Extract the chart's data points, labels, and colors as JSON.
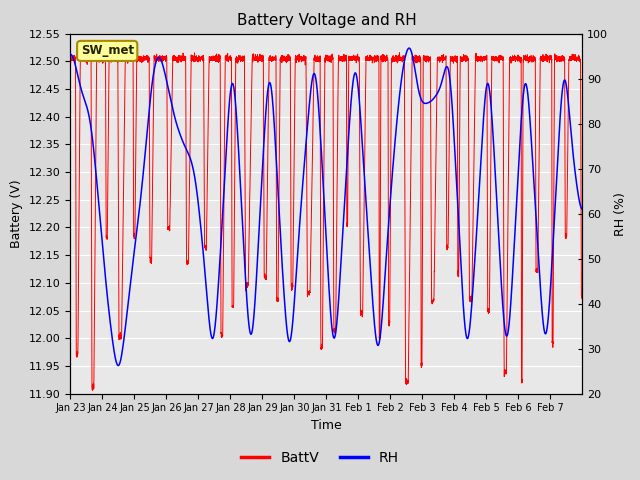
{
  "title": "Battery Voltage and RH",
  "xlabel": "Time",
  "ylabel_left": "Battery (V)",
  "ylabel_right": "RH (%)",
  "station_label": "SW_met",
  "legend_entries": [
    "BattV",
    "RH"
  ],
  "batt_ylim": [
    11.9,
    12.55
  ],
  "rh_ylim": [
    20,
    100
  ],
  "batt_yticks": [
    11.9,
    11.95,
    12.0,
    12.05,
    12.1,
    12.15,
    12.2,
    12.25,
    12.3,
    12.35,
    12.4,
    12.45,
    12.5,
    12.55
  ],
  "rh_yticks": [
    20,
    30,
    40,
    50,
    60,
    70,
    80,
    90,
    100
  ],
  "background_color": "#d8d8d8",
  "plot_bg_color": "#e8e8e8",
  "grid_color": "#ffffff",
  "num_days": 16,
  "xtick_labels": [
    "Jan 23",
    "Jan 24",
    "Jan 25",
    "Jan 26",
    "Jan 27",
    "Jan 28",
    "Jan 29",
    "Jan 30",
    "Jan 31",
    "Feb 1",
    "Feb 2",
    "Feb 3",
    "Feb 4",
    "Feb 5",
    "Feb 6",
    "Feb 7"
  ]
}
